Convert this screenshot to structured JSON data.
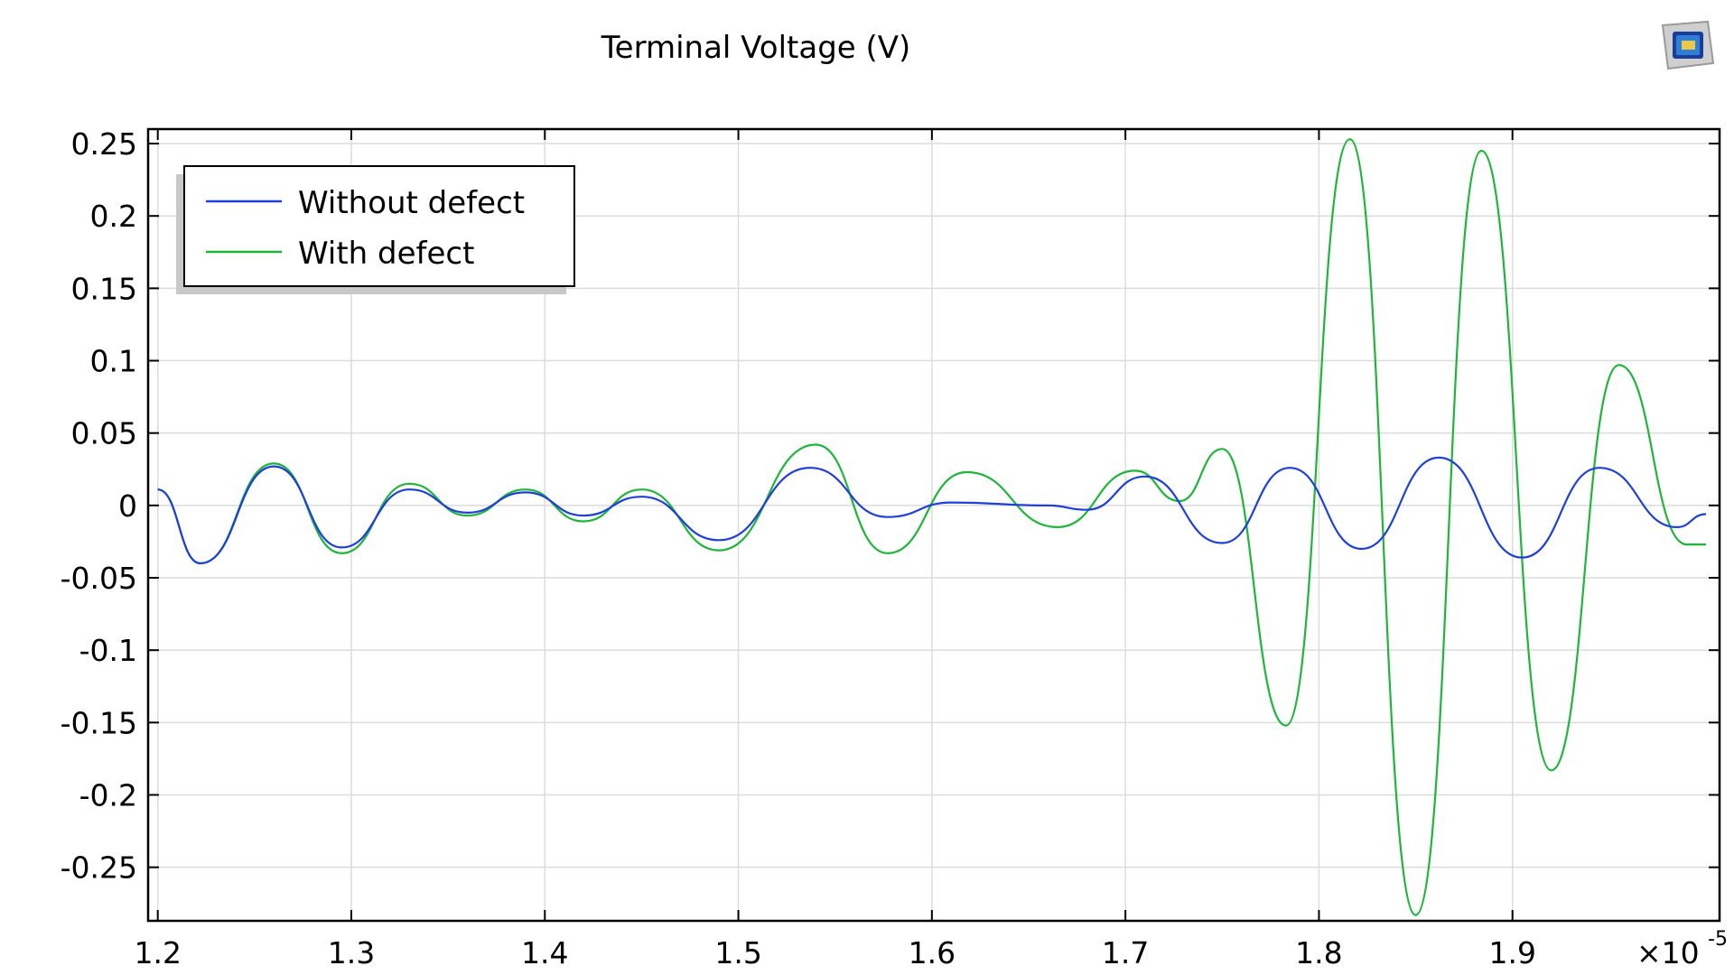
{
  "chart_data": {
    "type": "line",
    "title": "Terminal Voltage (V)",
    "xlabel": "",
    "ylabel": "",
    "x_multiplier": "×10",
    "x_multiplier_exponent": "-5",
    "xlim": [
      1.195,
      2.007
    ],
    "ylim": [
      -0.287,
      0.26
    ],
    "x_ticks": [
      1.2,
      1.3,
      1.4,
      1.5,
      1.6,
      1.7,
      1.8,
      1.9
    ],
    "x_tick_labels": [
      "1.2",
      "1.3",
      "1.4",
      "1.5",
      "1.6",
      "1.7",
      "1.8",
      "1.9"
    ],
    "y_ticks": [
      0.25,
      0.2,
      0.15,
      0.1,
      0.05,
      0,
      -0.05,
      -0.1,
      -0.15,
      -0.2,
      -0.25
    ],
    "y_tick_labels": [
      "0.25",
      "0.2",
      "0.15",
      "0.1",
      "0.05",
      "0",
      "-0.05",
      "-0.1",
      "-0.15",
      "-0.2",
      "-0.25"
    ],
    "grid": true,
    "legend_position": "top-left",
    "series": [
      {
        "name": "Without defect",
        "color": "#1f3fd6",
        "x": [
          1.2,
          1.222,
          1.26,
          1.295,
          1.33,
          1.36,
          1.39,
          1.42,
          1.45,
          1.49,
          1.537,
          1.577,
          1.61,
          1.66,
          1.68,
          1.71,
          1.75,
          1.785,
          1.822,
          1.862,
          1.905,
          1.945,
          1.985,
          2.0
        ],
        "values": [
          0.011,
          -0.04,
          0.027,
          -0.029,
          0.011,
          -0.005,
          0.009,
          -0.007,
          0.006,
          -0.024,
          0.026,
          -0.008,
          0.002,
          0.0,
          -0.003,
          0.02,
          -0.026,
          0.026,
          -0.03,
          0.033,
          -0.036,
          0.026,
          -0.015,
          -0.006
        ]
      },
      {
        "name": "With defect",
        "color": "#1fb53a",
        "x": [
          1.2,
          1.222,
          1.26,
          1.295,
          1.33,
          1.36,
          1.39,
          1.42,
          1.45,
          1.49,
          1.54,
          1.577,
          1.618,
          1.665,
          1.705,
          1.728,
          1.75,
          1.783,
          1.816,
          1.85,
          1.884,
          1.92,
          1.955,
          1.99,
          2.0
        ],
        "values": [
          0.011,
          -0.04,
          0.029,
          -0.033,
          0.015,
          -0.007,
          0.011,
          -0.011,
          0.011,
          -0.031,
          0.042,
          -0.033,
          0.023,
          -0.015,
          0.024,
          0.003,
          0.039,
          -0.152,
          0.253,
          -0.283,
          0.245,
          -0.183,
          0.097,
          -0.027,
          -0.027
        ]
      }
    ]
  },
  "logo": {
    "icon": "comsol-logo-icon"
  }
}
